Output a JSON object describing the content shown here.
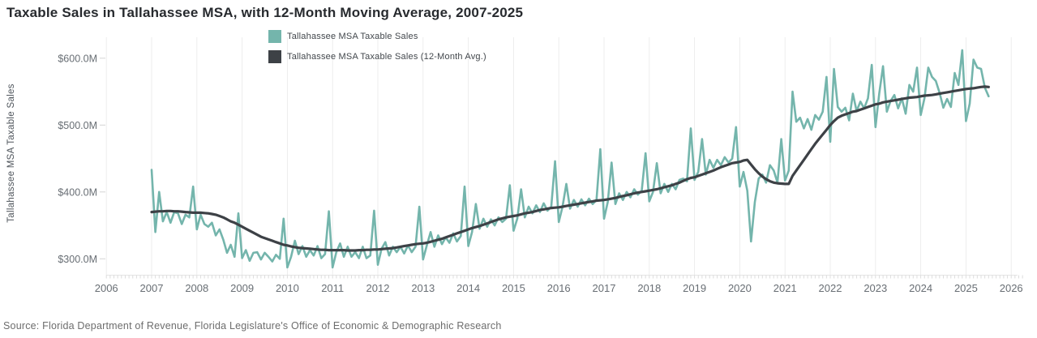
{
  "title": "Taxable Sales in Tallahassee MSA, with 12-Month Moving Average, 2007-2025",
  "source_note": "Source: Florida Department of Revenue, Florida Legislature's Office of Economic & Demographic Research",
  "y_axis_title": "Tallahassee MSA Taxable Sales",
  "legend": {
    "items": [
      {
        "label": "Tallahassee MSA Taxable Sales",
        "color": "#74b5ac"
      },
      {
        "label": "Tallahassee MSA Taxable Sales (12-Month Avg.)",
        "color": "#3d4146"
      }
    ]
  },
  "chart_data": {
    "type": "line",
    "title": "Taxable Sales in Tallahassee MSA, with 12-Month Moving Average, 2007-2025",
    "ylabel": "Tallahassee MSA Taxable Sales",
    "xlabel": "",
    "grid": "vertical-year-gridlines",
    "legend_position": "top-center",
    "x_range": [
      2006,
      2026.3
    ],
    "y_range": [
      275,
      631
    ],
    "y_ticks": [
      {
        "value": 600,
        "label": "$600.0M"
      },
      {
        "value": 500,
        "label": "$500.0M"
      },
      {
        "value": 400,
        "label": "$400.0M"
      },
      {
        "value": 300,
        "label": "$300.0M"
      }
    ],
    "x_ticks": [
      2006,
      2007,
      2008,
      2009,
      2010,
      2011,
      2012,
      2013,
      2014,
      2015,
      2016,
      2017,
      2018,
      2019,
      2020,
      2021,
      2022,
      2023,
      2024,
      2025,
      2026
    ],
    "frequency": "monthly",
    "start": {
      "year": 2007,
      "month": 1
    },
    "end": {
      "year": 2025,
      "month": 7
    },
    "units": "USD millions",
    "series": [
      {
        "name": "Tallahassee MSA Taxable Sales",
        "color": "#74b5ac",
        "width": 2.6,
        "values": [
          433,
          340,
          400,
          356,
          370,
          354,
          370,
          368,
          352,
          366,
          362,
          408,
          344,
          366,
          352,
          348,
          354,
          335,
          344,
          329,
          309,
          321,
          303,
          368,
          301,
          313,
          297,
          309,
          310,
          299,
          309,
          303,
          296,
          306,
          300,
          360,
          287,
          303,
          327,
          307,
          319,
          303,
          313,
          305,
          319,
          301,
          307,
          371,
          287,
          310,
          323,
          303,
          318,
          303,
          310,
          301,
          318,
          301,
          305,
          372,
          291,
          315,
          325,
          305,
          318,
          310,
          318,
          308,
          320,
          310,
          318,
          378,
          299,
          320,
          340,
          318,
          335,
          322,
          332,
          324,
          338,
          326,
          334,
          408,
          319,
          340,
          382,
          345,
          360,
          348,
          359,
          350,
          362,
          355,
          360,
          410,
          342,
          360,
          404,
          362,
          378,
          368,
          380,
          370,
          383,
          372,
          378,
          446,
          355,
          378,
          412,
          375,
          388,
          378,
          389,
          380,
          390,
          382,
          388,
          464,
          360,
          385,
          444,
          382,
          398,
          388,
          400,
          392,
          404,
          396,
          402,
          458,
          386,
          400,
          443,
          398,
          412,
          400,
          412,
          404,
          418,
          420,
          416,
          495,
          418,
          430,
          479,
          426,
          448,
          436,
          448,
          440,
          452,
          444,
          450,
          497,
          408,
          430,
          402,
          326,
          385,
          420,
          426,
          414,
          440,
          432,
          414,
          479,
          417,
          432,
          550,
          505,
          511,
          495,
          509,
          493,
          515,
          508,
          520,
          572,
          475,
          584,
          527,
          520,
          526,
          507,
          547,
          521,
          535,
          525,
          540,
          590,
          497,
          547,
          588,
          520,
          536,
          545,
          525,
          540,
          517,
          560,
          550,
          586,
          515,
          540,
          586,
          572,
          566,
          548,
          526,
          539,
          527,
          578,
          560,
          612,
          506,
          532,
          598,
          586,
          584,
          556,
          543
        ]
      },
      {
        "name": "Tallahassee MSA Taxable Sales (12-Month Avg.)",
        "color": "#3d4146",
        "width": 3.2,
        "values": [
          370,
          370.5,
          371,
          371,
          371.5,
          371.5,
          371,
          371,
          370.5,
          370,
          369.5,
          369,
          369,
          369,
          368.5,
          368,
          367,
          366,
          364,
          362,
          359,
          356,
          354,
          351,
          348,
          345,
          342,
          339,
          336,
          333,
          331,
          329,
          327,
          325,
          323,
          321,
          320,
          318.5,
          317.5,
          316.5,
          316,
          315.5,
          315,
          314.5,
          314,
          313.5,
          313.5,
          313,
          313,
          313,
          313,
          313,
          312.5,
          312.5,
          312.5,
          313,
          313,
          313.5,
          313.5,
          314,
          314,
          314.5,
          315,
          315.5,
          316,
          317,
          318,
          319,
          320,
          321,
          322,
          322.5,
          323,
          324,
          325.5,
          327,
          328.5,
          330,
          332,
          334,
          336,
          338,
          340,
          342,
          344,
          346,
          347.5,
          349,
          351,
          353,
          355,
          357,
          359,
          360.5,
          362,
          363,
          364,
          365,
          366.5,
          368,
          369,
          370,
          371.5,
          373,
          374,
          375,
          376,
          376.5,
          377,
          378,
          379,
          380,
          381,
          382,
          383,
          384,
          385,
          386,
          387,
          387.5,
          388,
          389,
          390,
          391,
          392.5,
          394,
          395,
          396.5,
          398,
          399,
          400,
          401,
          402,
          403,
          404,
          405.5,
          407,
          408.5,
          410,
          412,
          414,
          416.5,
          419,
          421,
          422,
          424,
          426,
          428,
          430,
          432,
          434.5,
          437,
          439,
          441,
          443,
          444,
          445,
          447,
          448,
          441,
          434,
          428,
          423,
          419,
          416,
          414,
          413,
          412.5,
          412,
          412,
          424,
          432,
          440,
          448,
          456,
          464,
          472,
          479,
          486,
          493,
          500,
          506,
          511,
          514,
          516,
          518,
          520,
          521,
          523,
          525,
          527,
          529,
          531,
          532,
          534,
          535,
          536,
          537,
          538,
          539,
          540,
          541,
          541.5,
          542,
          543,
          544,
          544.5,
          545,
          546,
          547,
          548,
          549,
          550,
          551,
          552,
          553,
          554,
          554.5,
          555,
          556,
          557,
          557.5,
          557
        ]
      }
    ]
  }
}
